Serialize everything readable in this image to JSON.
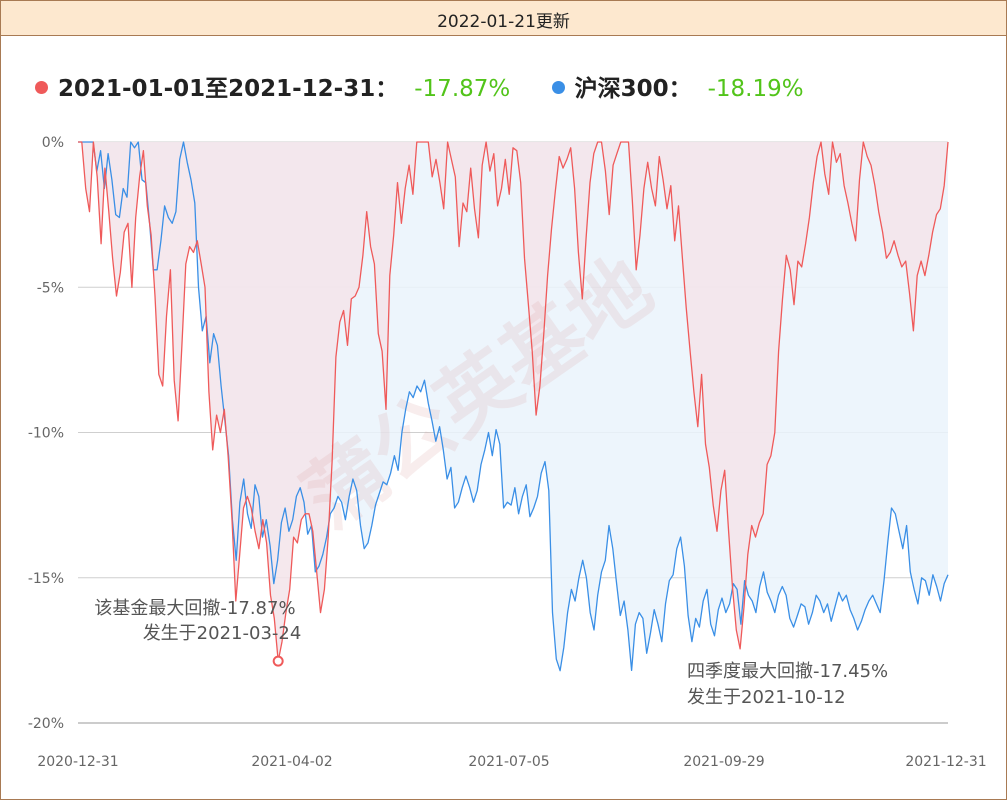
{
  "header": {
    "update_label": "2022-01-21更新"
  },
  "watermark": "蒲公英基地",
  "chart_data": {
    "type": "area",
    "title": "",
    "ylim": [
      -20,
      0
    ],
    "yticks": [
      "0%",
      "-5%",
      "-10%",
      "-15%",
      "-20%"
    ],
    "ytick_values": [
      0,
      -5,
      -10,
      -15,
      -20
    ],
    "xticks": [
      "2020-12-31",
      "2021-04-02",
      "2021-07-05",
      "2021-09-29",
      "2021-12-31"
    ],
    "grid": true,
    "legend_position": "top-left",
    "series": [
      {
        "name": "2021-01-01至2021-12-31：",
        "summary": "-17.87%",
        "color": "#ef5a5a",
        "fill": "#f3e4ea",
        "values": [
          0,
          0,
          -1.6,
          -2.4,
          0,
          -1.2,
          -3.5,
          -0.9,
          -2.4,
          -4.0,
          -5.3,
          -4.5,
          -3.1,
          -2.8,
          -5.0,
          -2.6,
          -1.2,
          -0.3,
          -2.2,
          -3.2,
          -5.3,
          -8.0,
          -8.4,
          -6.0,
          -4.4,
          -8.2,
          -9.6,
          -7.0,
          -4.2,
          -3.6,
          -3.8,
          -3.4,
          -4.2,
          -5.0,
          -8.6,
          -10.6,
          -9.4,
          -10.0,
          -9.2,
          -10.8,
          -13.0,
          -15.8,
          -14.2,
          -12.6,
          -12.2,
          -12.6,
          -13.4,
          -14.0,
          -13.0,
          -13.8,
          -15.6,
          -16.4,
          -17.87,
          -17.2,
          -16.2,
          -15.4,
          -13.6,
          -13.8,
          -13.0,
          -12.8,
          -12.8,
          -13.4,
          -14.8,
          -16.2,
          -15.4,
          -13.6,
          -11.0,
          -7.4,
          -6.2,
          -5.8,
          -7.0,
          -5.4,
          -5.3,
          -5.0,
          -3.9,
          -2.4,
          -3.6,
          -4.2,
          -6.6,
          -7.2,
          -9.2,
          -4.6,
          -3.2,
          -1.4,
          -2.8,
          -1.6,
          -0.8,
          -1.8,
          0,
          0,
          0,
          0,
          -1.2,
          -0.6,
          -1.4,
          -2.3,
          0,
          -0.6,
          -1.2,
          -3.6,
          -2.1,
          -2.4,
          -0.9,
          -2.3,
          -3.3,
          -0.8,
          0,
          -1.0,
          -0.4,
          -2.2,
          -1.6,
          -0.6,
          -1.8,
          -0.2,
          -0.3,
          -1.4,
          -4.0,
          -5.6,
          -7.2,
          -9.4,
          -8.4,
          -6.6,
          -4.6,
          -3.0,
          -1.7,
          -0.5,
          -0.9,
          -0.6,
          -0.2,
          -1.6,
          -3.8,
          -5.4,
          -3.3,
          -1.4,
          -0.4,
          0,
          0,
          -1.0,
          -2.5,
          -0.8,
          -0.4,
          0,
          0,
          0,
          -2.0,
          -4.4,
          -3.2,
          -1.6,
          -0.7,
          -1.6,
          -2.2,
          -0.5,
          -1.3,
          -2.3,
          -1.5,
          -3.4,
          -2.2,
          -4.0,
          -5.7,
          -7.2,
          -8.6,
          -9.8,
          -8.0,
          -10.4,
          -11.2,
          -12.5,
          -13.4,
          -12.0,
          -11.3,
          -13.4,
          -15.3,
          -16.8,
          -17.45,
          -16.0,
          -14.2,
          -13.2,
          -13.6,
          -13.1,
          -12.8,
          -11.1,
          -10.8,
          -10.0,
          -7.2,
          -5.4,
          -3.9,
          -4.4,
          -5.6,
          -4.1,
          -4.3,
          -3.5,
          -2.6,
          -1.4,
          -0.5,
          0,
          -1.1,
          -1.8,
          0,
          -0.7,
          -0.4,
          -1.5,
          -2.1,
          -2.8,
          -3.4,
          -1.3,
          0,
          -0.5,
          -0.8,
          -1.5,
          -2.4,
          -3.1,
          -4.0,
          -3.8,
          -3.4,
          -3.9,
          -4.3,
          -4.1,
          -5.2,
          -6.5,
          -4.6,
          -4.1,
          -4.6,
          -3.9,
          -3.1,
          -2.5,
          -2.3,
          -1.5,
          0
        ]
      },
      {
        "name": "沪深300：",
        "summary": "-18.19%",
        "color": "#3a8fe6",
        "fill": "#eaf3fc",
        "values": [
          0,
          0,
          0,
          0,
          0,
          -1.0,
          -0.3,
          -1.6,
          -0.4,
          -1.3,
          -2.5,
          -2.6,
          -1.6,
          -1.9,
          0,
          -0.2,
          0,
          -1.3,
          -1.4,
          -2.8,
          -4.4,
          -4.4,
          -3.4,
          -2.2,
          -2.6,
          -2.8,
          -2.4,
          -0.6,
          0,
          -0.7,
          -1.3,
          -2.1,
          -5.0,
          -6.5,
          -6.0,
          -7.6,
          -6.6,
          -7.0,
          -8.4,
          -9.6,
          -10.8,
          -13.0,
          -14.4,
          -12.4,
          -11.6,
          -12.8,
          -13.3,
          -11.8,
          -12.2,
          -13.6,
          -13.0,
          -13.9,
          -15.2,
          -14.4,
          -13.1,
          -12.6,
          -13.4,
          -13.0,
          -12.2,
          -11.9,
          -12.4,
          -13.5,
          -13.2,
          -14.8,
          -14.6,
          -14.2,
          -13.6,
          -12.8,
          -12.6,
          -12.2,
          -12.4,
          -13.0,
          -12.2,
          -11.6,
          -12.0,
          -13.2,
          -14.0,
          -13.8,
          -13.2,
          -12.5,
          -12.1,
          -11.7,
          -11.8,
          -11.4,
          -10.8,
          -11.3,
          -10.0,
          -9.2,
          -8.6,
          -8.8,
          -8.4,
          -8.6,
          -8.2,
          -9.0,
          -9.6,
          -10.3,
          -9.8,
          -10.6,
          -11.6,
          -11.2,
          -12.6,
          -12.4,
          -11.9,
          -11.5,
          -11.9,
          -12.4,
          -12.0,
          -11.1,
          -10.6,
          -10.0,
          -10.8,
          -9.9,
          -10.4,
          -12.6,
          -12.4,
          -12.5,
          -11.9,
          -12.8,
          -12.2,
          -11.8,
          -12.9,
          -12.6,
          -12.2,
          -11.4,
          -11.0,
          -12.0,
          -16.2,
          -17.8,
          -18.2,
          -17.4,
          -16.2,
          -15.4,
          -15.8,
          -15.0,
          -14.4,
          -15.0,
          -16.2,
          -16.8,
          -15.6,
          -14.8,
          -14.4,
          -13.2,
          -14.0,
          -15.2,
          -16.3,
          -15.8,
          -16.8,
          -18.19,
          -16.6,
          -16.2,
          -16.4,
          -17.6,
          -16.9,
          -16.1,
          -16.6,
          -17.2,
          -15.9,
          -15.1,
          -14.9,
          -14.0,
          -13.6,
          -14.6,
          -16.3,
          -17.2,
          -16.4,
          -16.7,
          -15.8,
          -15.4,
          -16.6,
          -17.0,
          -16.1,
          -15.7,
          -16.2,
          -15.9,
          -15.2,
          -15.4,
          -16.6,
          -15.1,
          -15.6,
          -15.8,
          -16.2,
          -15.3,
          -14.8,
          -15.5,
          -15.8,
          -16.2,
          -15.6,
          -15.3,
          -15.6,
          -16.4,
          -16.7,
          -16.3,
          -15.9,
          -16.0,
          -16.6,
          -16.2,
          -15.6,
          -15.8,
          -16.2,
          -15.9,
          -16.5,
          -16.0,
          -15.5,
          -15.8,
          -15.6,
          -16.1,
          -16.4,
          -16.8,
          -16.5,
          -16.1,
          -15.8,
          -15.6,
          -15.9,
          -16.2,
          -15.1,
          -13.8,
          -12.6,
          -12.8,
          -13.4,
          -14.0,
          -13.2,
          -14.8,
          -15.4,
          -15.9,
          -15.0,
          -15.1,
          -15.6,
          -14.9,
          -15.3,
          -15.8,
          -15.2,
          -14.9
        ]
      }
    ],
    "annotations": [
      {
        "line1": "该基金最大回撤-17.87%",
        "line2": "发生于2021-03-24",
        "index": 52,
        "value": -17.87
      },
      {
        "line1": "四季度最大回撤-17.45%",
        "line2": "发生于2021-10-12"
      }
    ]
  }
}
